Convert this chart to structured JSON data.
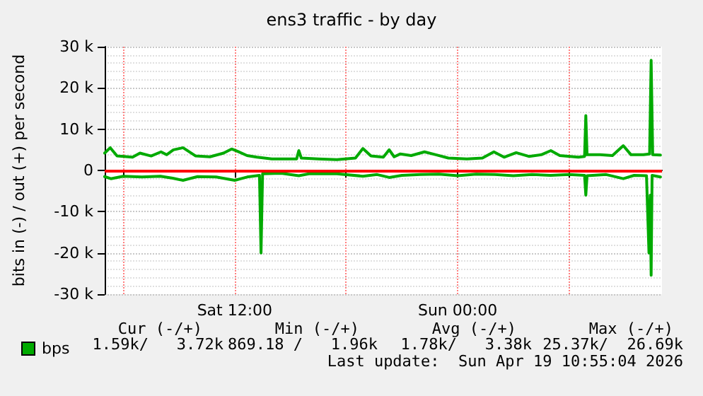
{
  "chart_data": {
    "type": "line",
    "title": "ens3 traffic - by day",
    "ylabel": "bits in (-) / out (+) per second",
    "xlim": [
      "2026-04-18T05:00",
      "2026-04-19T11:00"
    ],
    "xticks": [
      {
        "value": "2026-04-18T06:00",
        "label": null
      },
      {
        "value": "2026-04-18T12:00",
        "label": "Sat 12:00"
      },
      {
        "value": "2026-04-18T18:00",
        "label": null
      },
      {
        "value": "2026-04-19T00:00",
        "label": "Sun 00:00"
      },
      {
        "value": "2026-04-19T06:00",
        "label": null
      }
    ],
    "ylim": [
      -30000,
      30000
    ],
    "yticks": [
      {
        "value": -30000,
        "label": "-30 k"
      },
      {
        "value": -20000,
        "label": "-20 k"
      },
      {
        "value": -10000,
        "label": "-10 k"
      },
      0,
      {
        "value": 10000,
        "label": "10 k"
      },
      {
        "value": 20000,
        "label": "20 k"
      },
      {
        "value": 30000,
        "label": "30 k"
      }
    ],
    "grid": true,
    "legend": "bottom left",
    "marker": "none",
    "line_style": "solid",
    "ref_lines": [
      {
        "axis": "y",
        "value": 0,
        "label": null,
        "color": "#ff0000"
      }
    ],
    "series": [
      {
        "name": "bps",
        "color": "#00aa00",
        "x": [
          "2026-04-18T05:00",
          "2026-04-18T05:18",
          "2026-04-18T05:40",
          "2026-04-18T06:30",
          "2026-04-18T06:54",
          "2026-04-18T07:30",
          "2026-04-18T08:02",
          "2026-04-18T08:20",
          "2026-04-18T08:42",
          "2026-04-18T09:13",
          "2026-04-18T09:54",
          "2026-04-18T10:40",
          "2026-04-18T11:24",
          "2026-04-18T11:50",
          "2026-04-18T12:10",
          "2026-04-18T12:40",
          "2026-04-18T13:12",
          "2026-04-18T14:00",
          "2026-04-18T15:00",
          "2026-04-18T15:20",
          "2026-04-18T15:27",
          "2026-04-18T15:35",
          "2026-04-18T16:30",
          "2026-04-18T17:30",
          "2026-04-18T18:30",
          "2026-04-18T18:54",
          "2026-04-18T19:20",
          "2026-04-18T20:00",
          "2026-04-18T20:19",
          "2026-04-18T20:35",
          "2026-04-18T20:55",
          "2026-04-18T21:30",
          "2026-04-18T22:13",
          "2026-04-18T22:50",
          "2026-04-18T23:30",
          "2026-04-19T00:30",
          "2026-04-19T01:20",
          "2026-04-19T01:57",
          "2026-04-19T02:30",
          "2026-04-19T03:09",
          "2026-04-19T03:50",
          "2026-04-19T04:30",
          "2026-04-19T05:01",
          "2026-04-19T05:30",
          "2026-04-19T06:30",
          "2026-04-19T06:50",
          "2026-04-19T06:54",
          "2026-04-19T06:58",
          "2026-04-19T07:40",
          "2026-04-19T08:20",
          "2026-04-19T08:55",
          "2026-04-19T09:20",
          "2026-04-19T10:00",
          "2026-04-19T10:20",
          "2026-04-19T10:25",
          "2026-04-19T10:30",
          "2026-04-19T10:55"
        ],
        "values": [
          4200,
          5500,
          3500,
          3200,
          4200,
          3500,
          4500,
          3800,
          5000,
          5500,
          3500,
          3300,
          4200,
          5200,
          4600,
          3600,
          3200,
          2800,
          2800,
          2800,
          4800,
          3000,
          2800,
          2600,
          3000,
          5300,
          3500,
          3200,
          5000,
          3300,
          4000,
          3600,
          4500,
          3800,
          3000,
          2800,
          3000,
          4500,
          3200,
          4300,
          3400,
          3800,
          4800,
          3600,
          3200,
          3400,
          13300,
          3800,
          3800,
          3600,
          6000,
          3800,
          3800,
          4000,
          26700,
          3800,
          3720
        ]
      },
      {
        "color": "#00aa00",
        "x": [
          "2026-04-18T05:00",
          "2026-04-18T05:20",
          "2026-04-18T06:00",
          "2026-04-18T07:00",
          "2026-04-18T08:00",
          "2026-04-18T08:40",
          "2026-04-18T09:13",
          "2026-04-18T10:00",
          "2026-04-18T11:00",
          "2026-04-18T12:00",
          "2026-04-18T12:40",
          "2026-04-18T13:20",
          "2026-04-18T13:25",
          "2026-04-18T13:30",
          "2026-04-18T14:30",
          "2026-04-18T15:27",
          "2026-04-18T16:00",
          "2026-04-18T17:30",
          "2026-04-18T18:54",
          "2026-04-18T19:40",
          "2026-04-18T20:19",
          "2026-04-18T21:00",
          "2026-04-18T22:00",
          "2026-04-18T23:00",
          "2026-04-19T00:00",
          "2026-04-19T01:00",
          "2026-04-19T02:00",
          "2026-04-19T03:00",
          "2026-04-19T04:00",
          "2026-04-19T05:00",
          "2026-04-19T06:00",
          "2026-04-19T06:50",
          "2026-04-19T06:54",
          "2026-04-19T06:58",
          "2026-04-19T08:00",
          "2026-04-19T08:55",
          "2026-04-19T09:30",
          "2026-04-19T10:10",
          "2026-04-19T10:18",
          "2026-04-19T10:22",
          "2026-04-19T10:25",
          "2026-04-19T10:28",
          "2026-04-19T10:55"
        ],
        "values": [
          -1500,
          -2000,
          -1400,
          -1600,
          -1400,
          -1900,
          -2400,
          -1500,
          -1600,
          -2400,
          -1600,
          -1200,
          -20000,
          -800,
          -700,
          -1300,
          -800,
          -800,
          -1400,
          -1000,
          -1700,
          -1200,
          -1000,
          -900,
          -1300,
          -900,
          -1000,
          -1300,
          -1000,
          -1200,
          -1000,
          -1200,
          -6000,
          -1300,
          -1000,
          -2000,
          -1200,
          -1300,
          -20000,
          -6000,
          -25400,
          -1200,
          -1590
        ]
      }
    ],
    "annotations": [
      "Cur (-/+)",
      "Min (-/+)",
      "Avg (-/+)",
      "Max (-/+)",
      "1.59k/   3.72k",
      "869.18 /   1.96k",
      "1.78k/   3.38k",
      "25.37k/  26.69k",
      "Last update:  Sun Apr 19 10:55:04 2026"
    ]
  }
}
